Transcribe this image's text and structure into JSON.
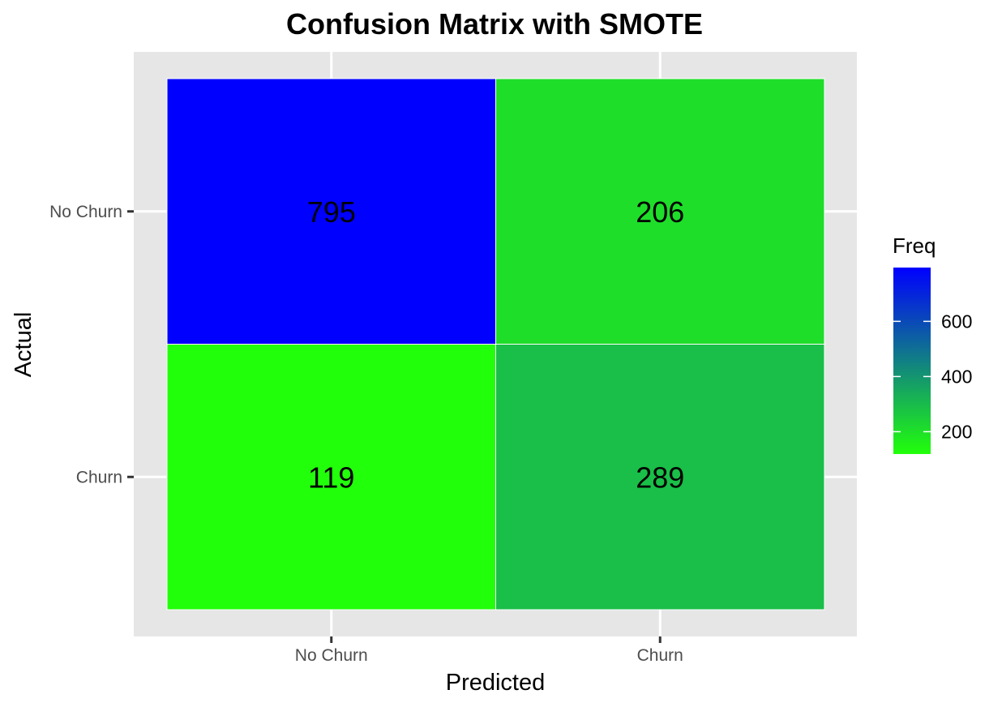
{
  "chart_data": {
    "type": "heatmap",
    "title": "Confusion Matrix with SMOTE",
    "xlabel": "Predicted",
    "ylabel": "Actual",
    "x_categories": [
      "No Churn",
      "Churn"
    ],
    "y_categories": [
      "No Churn",
      "Churn"
    ],
    "cells": [
      {
        "actual": "No Churn",
        "predicted": "No Churn",
        "value": 795
      },
      {
        "actual": "No Churn",
        "predicted": "Churn",
        "value": 206
      },
      {
        "actual": "Churn",
        "predicted": "No Churn",
        "value": 119
      },
      {
        "actual": "Churn",
        "predicted": "Churn",
        "value": 289
      }
    ],
    "legend": {
      "title": "Freq",
      "ticks": [
        200,
        400,
        600
      ],
      "placement": "right",
      "low_color": "#22ff0a",
      "high_color": "#0000ff"
    },
    "colors": {
      "panel_background": "#e6e6e6",
      "grid": "#ffffff",
      "cell_border": "#ffffff"
    }
  }
}
